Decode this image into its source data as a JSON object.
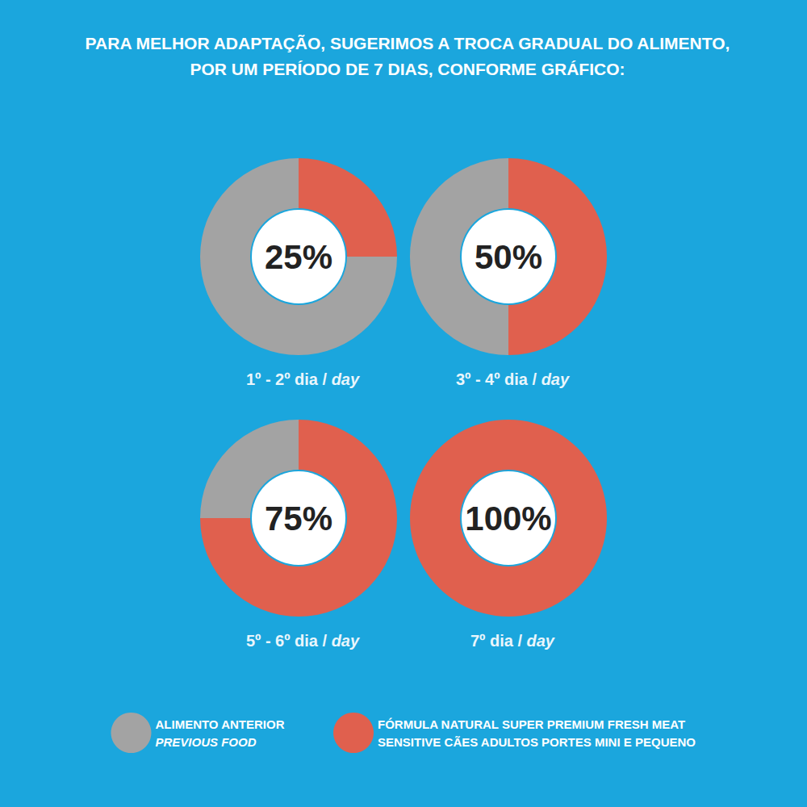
{
  "title": "PARA MELHOR ADAPTAÇÃO, SUGERIMOS A TROCA GRADUAL DO ALIMENTO, POR UM PERÍODO DE 7 DIAS, CONFORME GRÁFICO:",
  "legend": "bottom",
  "chart_data": [
    {
      "type": "pie",
      "title": "1º - 2º dia / day",
      "categories": [
        "ALIMENTO ANTERIOR\nPREVIOUS FOOD",
        "FÓRMULA NATURAL SUPER PREMIUM FRESH MEAT\nSENSITIVE CÃES ADULTOS PORTES MINI E PEQUENO"
      ],
      "colors": [
        "#a3a3a3",
        "#e0604e"
      ],
      "values": [
        75,
        25
      ],
      "value_labels": [
        null,
        "25%"
      ]
    },
    {
      "type": "pie",
      "title": "3º - 4º dia / day",
      "categories": [
        "ALIMENTO ANTERIOR\nPREVIOUS FOOD",
        "FÓRMULA NATURAL SUPER PREMIUM FRESH MEAT\nSENSITIVE CÃES ADULTOS PORTES MINI E PEQUENO"
      ],
      "colors": [
        "#a3a3a3",
        "#e0604e"
      ],
      "values": [
        50,
        50
      ],
      "value_labels": [
        null,
        "50%"
      ]
    },
    {
      "type": "pie",
      "title": "5º - 6º dia / day",
      "categories": [
        "ALIMENTO ANTERIOR\nPREVIOUS FOOD",
        "FÓRMULA NATURAL SUPER PREMIUM FRESH MEAT\nSENSITIVE CÃES ADULTOS PORTES MINI E PEQUENO"
      ],
      "colors": [
        "#a3a3a3",
        "#e0604e"
      ],
      "values": [
        25,
        75
      ],
      "value_labels": [
        null,
        "75%"
      ]
    },
    {
      "type": "pie",
      "title": "7º dia / day",
      "categories": [
        "ALIMENTO ANTERIOR\nPREVIOUS FOOD",
        "FÓRMULA NATURAL SUPER PREMIUM FRESH MEAT\nSENSITIVE CÃES ADULTOS PORTES MINI E PEQUENO"
      ],
      "colors": [
        "#a3a3a3",
        "#e0604e"
      ],
      "values": [
        0,
        100
      ],
      "value_labels": [
        null,
        "100%"
      ]
    }
  ]
}
